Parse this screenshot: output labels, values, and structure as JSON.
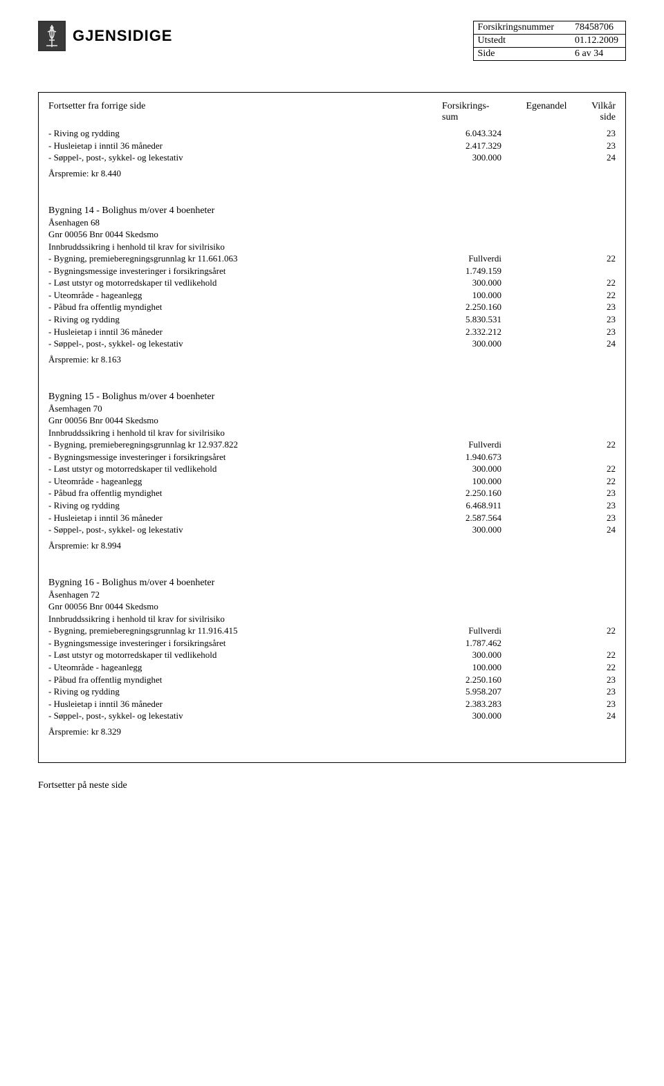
{
  "logo_text": "GJENSIDIGE",
  "info": {
    "insurance_no_label": "Forsikringsnummer",
    "insurance_no": "78458706",
    "issued_label": "Utstedt",
    "issued": "01.12.2009",
    "page_label": "Side",
    "page": "6 av 34"
  },
  "headers": {
    "continued": "Fortsetter fra forrige side",
    "sum1": "Forsikrings-",
    "sum2": "sum",
    "egenandel": "Egenandel",
    "vilkar1": "Vilkår",
    "vilkar2": "side"
  },
  "top_rows": [
    {
      "desc": "- Riving og rydding",
      "sum": "6.043.324",
      "vilkar": "23"
    },
    {
      "desc": "- Husleietap i inntil 36 måneder",
      "sum": "2.417.329",
      "vilkar": "23"
    },
    {
      "desc": "- Søppel-, post-, sykkel- og lekestativ",
      "sum": "300.000",
      "vilkar": "24"
    }
  ],
  "top_premium": "Årspremie: kr 8.440",
  "sections": [
    {
      "title": "Bygning 14 - Bolighus m/over 4 boenheter",
      "addr": "Åsenhagen 68",
      "gnr": "Gnr 00056 Bnr 0044   Skedsmo",
      "innbrudd": "Innbruddssikring i henhold til krav for sivilrisiko",
      "rows": [
        {
          "desc": "- Bygning, premieberegningsgrunnlag kr 11.661.063",
          "sum": "Fullverdi",
          "vilkar": "22"
        },
        {
          "desc": "- Bygningsmessige investeringer i forsikringsåret",
          "sum": "1.749.159",
          "vilkar": ""
        },
        {
          "desc": "- Løst utstyr og motorredskaper til vedlikehold",
          "sum": "300.000",
          "vilkar": "22"
        },
        {
          "desc": "- Uteområde - hageanlegg",
          "sum": "100.000",
          "vilkar": "22"
        },
        {
          "desc": "- Påbud fra offentlig myndighet",
          "sum": "2.250.160",
          "vilkar": "23"
        },
        {
          "desc": "- Riving og rydding",
          "sum": "5.830.531",
          "vilkar": "23"
        },
        {
          "desc": "- Husleietap i inntil 36 måneder",
          "sum": "2.332.212",
          "vilkar": "23"
        },
        {
          "desc": "- Søppel-, post-, sykkel- og lekestativ",
          "sum": "300.000",
          "vilkar": "24"
        }
      ],
      "premium": "Årspremie: kr 8.163"
    },
    {
      "title": "Bygning 15 - Bolighus m/over 4 boenheter",
      "addr": "Åsemhagen 70",
      "gnr": "Gnr 00056 Bnr 0044   Skedsmo",
      "innbrudd": "Innbruddssikring i henhold til krav for sivilrisiko",
      "rows": [
        {
          "desc": "- Bygning, premieberegningsgrunnlag kr 12.937.822",
          "sum": "Fullverdi",
          "vilkar": "22"
        },
        {
          "desc": "- Bygningsmessige investeringer i forsikringsåret",
          "sum": "1.940.673",
          "vilkar": ""
        },
        {
          "desc": "- Løst utstyr og motorredskaper til vedlikehold",
          "sum": "300.000",
          "vilkar": "22"
        },
        {
          "desc": "- Uteområde - hageanlegg",
          "sum": "100.000",
          "vilkar": "22"
        },
        {
          "desc": "- Påbud fra offentlig myndighet",
          "sum": "2.250.160",
          "vilkar": "23"
        },
        {
          "desc": "- Riving og rydding",
          "sum": "6.468.911",
          "vilkar": "23"
        },
        {
          "desc": "- Husleietap i inntil 36 måneder",
          "sum": "2.587.564",
          "vilkar": "23"
        },
        {
          "desc": "- Søppel-, post-, sykkel- og lekestativ",
          "sum": "300.000",
          "vilkar": "24"
        }
      ],
      "premium": "Årspremie: kr 8.994"
    },
    {
      "title": "Bygning 16 - Bolighus m/over 4 boenheter",
      "addr": "Åsenhagen 72",
      "gnr": "Gnr 00056 Bnr 0044   Skedsmo",
      "innbrudd": "Innbruddssikring i henhold til krav for sivilrisiko",
      "rows": [
        {
          "desc": "- Bygning, premieberegningsgrunnlag kr 11.916.415",
          "sum": "Fullverdi",
          "vilkar": "22"
        },
        {
          "desc": "- Bygningsmessige investeringer i forsikringsåret",
          "sum": "1.787.462",
          "vilkar": ""
        },
        {
          "desc": "- Løst utstyr og motorredskaper til vedlikehold",
          "sum": "300.000",
          "vilkar": "22"
        },
        {
          "desc": "- Uteområde - hageanlegg",
          "sum": "100.000",
          "vilkar": "22"
        },
        {
          "desc": "- Påbud fra offentlig myndighet",
          "sum": "2.250.160",
          "vilkar": "23"
        },
        {
          "desc": "- Riving og rydding",
          "sum": "5.958.207",
          "vilkar": "23"
        },
        {
          "desc": "- Husleietap i inntil 36 måneder",
          "sum": "2.383.283",
          "vilkar": "23"
        },
        {
          "desc": "- Søppel-, post-, sykkel- og lekestativ",
          "sum": "300.000",
          "vilkar": "24"
        }
      ],
      "premium": "Årspremie: kr 8.329"
    }
  ],
  "footer": "Fortsetter på neste side"
}
